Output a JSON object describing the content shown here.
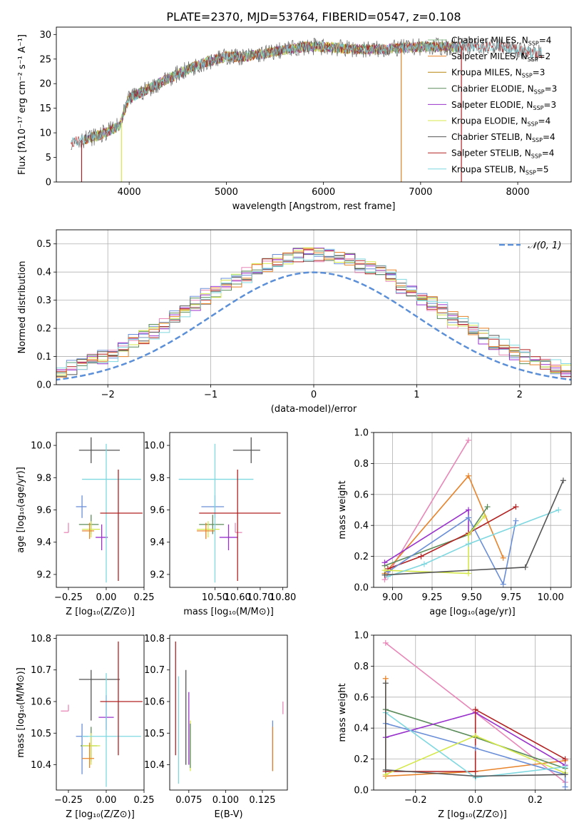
{
  "figure": {
    "suptitle": "PLATE=2370, MJD=53764, FIBERID=0547, z=0.108"
  },
  "colors": {
    "Chabrier MILES": "#8fbc8f",
    "Salpeter MILES": "#e8832a",
    "Kroupa MILES": "#b8860b",
    "Chabrier ELODIE": "#5b8c5a",
    "Salpeter ELODIE": "#9932cc",
    "Kroupa ELODIE": "#d4e84a",
    "Chabrier STELIB": "#555555",
    "Salpeter STELIB": "#b22222",
    "Kroupa STELIB": "#7fd8e0",
    "pink": "#e887b8",
    "blue": "#6a8fd8",
    "dashed_normal": "#5b8fd8",
    "grid": "#b0b0b0"
  },
  "chart_data": [
    {
      "id": "spectrum",
      "type": "line",
      "xlabel": "wavelength [Angstrom, rest frame]",
      "ylabel": "Flux [fλ10⁻¹⁷ erg cm⁻² s⁻¹ A⁻¹]",
      "xlim": [
        3250,
        8550
      ],
      "ylim": [
        0,
        31.5
      ],
      "xticks": [
        4000,
        5000,
        6000,
        7000,
        8000
      ],
      "yticks": [
        0,
        5,
        10,
        15,
        20,
        25,
        30
      ],
      "grid": false,
      "legend_position": "right",
      "legend": [
        {
          "label": "Chabrier MILES, N",
          "sub": "SSP",
          "eq": "=4"
        },
        {
          "label": "Salpeter MILES, N",
          "sub": "SSP",
          "eq": "=2"
        },
        {
          "label": "Kroupa MILES, N",
          "sub": "SSP",
          "eq": "=3"
        },
        {
          "label": "Chabrier ELODIE, N",
          "sub": "SSP",
          "eq": "=3"
        },
        {
          "label": "Salpeter ELODIE, N",
          "sub": "SSP",
          "eq": "=3"
        },
        {
          "label": "Kroupa ELODIE, N",
          "sub": "SSP",
          "eq": "=4"
        },
        {
          "label": "Chabrier STELIB, N",
          "sub": "SSP",
          "eq": "=4"
        },
        {
          "label": "Salpeter STELIB, N",
          "sub": "SSP",
          "eq": "=4"
        },
        {
          "label": "Kroupa STELIB, N",
          "sub": "SSP",
          "eq": "=5"
        }
      ],
      "continuum": {
        "x": [
          3400,
          3700,
          3900,
          4000,
          4200,
          4500,
          4800,
          5000,
          5200,
          5500,
          5800,
          6000,
          6300,
          6600,
          7000,
          7400,
          7800,
          8100,
          8300
        ],
        "y": [
          8,
          9.5,
          11.5,
          17,
          19,
          22,
          24.5,
          25.5,
          25.5,
          26.5,
          27.5,
          27.5,
          27,
          27,
          27.5,
          27.5,
          27.5,
          26.5,
          26
        ]
      },
      "dropouts": [
        {
          "x": 3510,
          "series": "Salpeter STELIB"
        },
        {
          "x": 3920,
          "series": "Kroupa ELODIE"
        },
        {
          "x": 6800,
          "series": "Salpeter MILES"
        },
        {
          "x": 7420,
          "series": "Salpeter STELIB"
        }
      ]
    },
    {
      "id": "residuals",
      "type": "histogram",
      "xlabel": "(data-model)/error",
      "ylabel": "Normed distribution",
      "xlim": [
        -2.5,
        2.5
      ],
      "ylim": [
        0,
        0.55
      ],
      "xticks": [
        -2,
        -1,
        0,
        1,
        2
      ],
      "xticklabels": [
        "−2",
        "−1",
        "0",
        "1",
        "2"
      ],
      "yticks": [
        0,
        0.1,
        0.2,
        0.3,
        0.4,
        0.5
      ],
      "yticklabels": [
        "0.0",
        "0.1",
        "0.2",
        "0.3",
        "0.4",
        "0.5"
      ],
      "grid": true,
      "legend_position": "top-right",
      "legend": "𝒩(0, 1)"
    },
    {
      "id": "age_vs_Z",
      "type": "scatter",
      "xlabel": "Z [log₁₀(Z/Z⊙)]",
      "ylabel": "age  [log₁₀(age/yr)]",
      "xlim": [
        -0.33,
        0.25
      ],
      "ylim": [
        9.12,
        10.08
      ],
      "xticks": [
        -0.25,
        0.0,
        0.25
      ],
      "xticklabels": [
        "−0.25",
        "0.00",
        "0.25"
      ],
      "yticks": [
        9.2,
        9.4,
        9.6,
        9.8,
        10.0
      ],
      "grid": false,
      "points": [
        {
          "color": "pink",
          "x": -0.25,
          "y": 9.46,
          "xerr": [
            0.03,
            0.0
          ],
          "yerr": [
            0.0,
            0.06
          ]
        },
        {
          "color": "blue",
          "x": -0.16,
          "y": 9.62,
          "xerr": [
            0.04,
            0.03
          ],
          "yerr": [
            0.07,
            0.07
          ]
        },
        {
          "color": "Chabrier ELODIE",
          "x": -0.1,
          "y": 9.51,
          "xerr": [
            0.08,
            0.05
          ],
          "yerr": [
            0.06,
            0.06
          ]
        },
        {
          "color": "Kroupa ELODIE",
          "x": -0.1,
          "y": 9.48,
          "xerr": [
            0.06,
            0.06
          ],
          "yerr": [
            0.05,
            0.05
          ]
        },
        {
          "color": "Salpeter MILES",
          "x": -0.11,
          "y": 9.47,
          "xerr": [
            0.05,
            0.03
          ],
          "yerr": [
            0.05,
            0.05
          ]
        },
        {
          "color": "Salpeter ELODIE",
          "x": -0.03,
          "y": 9.43,
          "xerr": [
            0.04,
            0.04
          ],
          "yerr": [
            0.08,
            0.08
          ]
        },
        {
          "color": "Chabrier STELIB",
          "x": -0.1,
          "y": 9.97,
          "xerr": [
            0.08,
            0.19
          ],
          "yerr": [
            0.08,
            0.08
          ]
        },
        {
          "color": "Kroupa STELIB",
          "x": 0.0,
          "y": 9.79,
          "xerr": [
            0.16,
            0.23
          ],
          "yerr": [
            0.64,
            0.22
          ]
        },
        {
          "color": "Salpeter STELIB",
          "x": 0.08,
          "y": 9.58,
          "xerr": [
            0.12,
            0.16
          ],
          "yerr": [
            0.42,
            0.27
          ]
        }
      ]
    },
    {
      "id": "age_vs_mass",
      "type": "scatter",
      "xlabel": "mass [log₁₀(M/M⊙)]",
      "ylabel": "",
      "xlim": [
        10.3,
        10.82
      ],
      "ylim": [
        9.12,
        10.08
      ],
      "xticks": [
        10.5,
        10.6,
        10.7,
        10.8
      ],
      "xticklabels": [
        "10.50",
        "10.60",
        "10.70",
        "10.80"
      ],
      "yticks": [
        9.2,
        9.4,
        9.6,
        9.8,
        10.0
      ],
      "grid": false,
      "points": [
        {
          "color": "blue",
          "x": 10.5,
          "y": 9.62,
          "xerr": [
            0.06,
            0.04
          ],
          "yerr": [
            0.07,
            0.07
          ]
        },
        {
          "color": "Chabrier ELODIE",
          "x": 10.49,
          "y": 9.51,
          "xerr": [
            0.06,
            0.05
          ],
          "yerr": [
            0.06,
            0.06
          ]
        },
        {
          "color": "Kroupa ELODIE",
          "x": 10.47,
          "y": 9.48,
          "xerr": [
            0.05,
            0.05
          ],
          "yerr": [
            0.05,
            0.05
          ]
        },
        {
          "color": "Salpeter MILES",
          "x": 10.46,
          "y": 9.47,
          "xerr": [
            0.04,
            0.04
          ],
          "yerr": [
            0.05,
            0.05
          ]
        },
        {
          "color": "pink",
          "x": 10.59,
          "y": 9.46,
          "xerr": [
            0.0,
            0.03
          ],
          "yerr": [
            0.0,
            0.06
          ]
        },
        {
          "color": "Salpeter ELODIE",
          "x": 10.56,
          "y": 9.43,
          "xerr": [
            0.04,
            0.04
          ],
          "yerr": [
            0.08,
            0.08
          ]
        },
        {
          "color": "Chabrier STELIB",
          "x": 10.66,
          "y": 9.97,
          "xerr": [
            0.08,
            0.04
          ],
          "yerr": [
            0.08,
            0.08
          ]
        },
        {
          "color": "Kroupa STELIB",
          "x": 10.5,
          "y": 9.79,
          "xerr": [
            0.16,
            0.17
          ],
          "yerr": [
            0.64,
            0.22
          ]
        },
        {
          "color": "Salpeter STELIB",
          "x": 10.6,
          "y": 9.58,
          "xerr": [
            0.17,
            0.19
          ],
          "yerr": [
            0.42,
            0.27
          ]
        }
      ]
    },
    {
      "id": "weight_vs_age",
      "type": "line",
      "xlabel": "age  [log₁₀(age/yr)]",
      "ylabel": "mass weight",
      "xlim": [
        8.88,
        10.13
      ],
      "ylim": [
        0,
        1
      ],
      "xticks": [
        9.0,
        9.25,
        9.5,
        9.75,
        10.0
      ],
      "xticklabels": [
        "9.00",
        "9.25",
        "9.50",
        "9.75",
        "10.00"
      ],
      "yticks": [
        0,
        0.2,
        0.4,
        0.6,
        0.8,
        1.0
      ],
      "yticklabels": [
        "0.0",
        "0.2",
        "0.4",
        "0.6",
        "0.8",
        "1.0"
      ],
      "grid": true,
      "series": [
        {
          "color": "pink",
          "x": [
            8.95,
            9.48
          ],
          "y": [
            0.05,
            0.95
          ]
        },
        {
          "color": "Salpeter MILES",
          "x": [
            8.95,
            9.48,
            9.7
          ],
          "y": [
            0.09,
            0.72,
            0.19
          ]
        },
        {
          "color": "Chabrier ELODIE",
          "x": [
            8.95,
            9.48,
            9.6
          ],
          "y": [
            0.14,
            0.34,
            0.52
          ]
        },
        {
          "color": "Salpeter ELODIE",
          "x": [
            8.95,
            9.48,
            9.48
          ],
          "y": [
            0.16,
            0.5,
            0.34
          ]
        },
        {
          "color": "Salpeter STELIB",
          "x": [
            8.97,
            9.18,
            9.48,
            9.78
          ],
          "y": [
            0.12,
            0.2,
            0.35,
            0.52
          ]
        },
        {
          "color": "blue",
          "x": [
            8.97,
            9.48,
            9.7,
            9.78
          ],
          "y": [
            0.1,
            0.45,
            0.02,
            0.43
          ]
        },
        {
          "color": "Kroupa ELODIE",
          "x": [
            8.95,
            9.48,
            9.48,
            9.58
          ],
          "y": [
            0.11,
            0.09,
            0.34,
            0.46
          ]
        },
        {
          "color": "Kroupa STELIB",
          "x": [
            8.97,
            9.2,
            9.48,
            10.05
          ],
          "y": [
            0.07,
            0.15,
            0.28,
            0.5
          ]
        },
        {
          "color": "Chabrier STELIB",
          "x": [
            8.95,
            9.84,
            10.08
          ],
          "y": [
            0.08,
            0.13,
            0.69
          ]
        }
      ]
    },
    {
      "id": "mass_vs_Z",
      "type": "scatter",
      "xlabel": "Z [log₁₀(Z/Z⊙)]",
      "ylabel": "mass [log₁₀(M/M⊙)]",
      "xlim": [
        -0.33,
        0.25
      ],
      "ylim": [
        10.32,
        10.81
      ],
      "xticks": [
        -0.25,
        0.0,
        0.25
      ],
      "xticklabels": [
        "−0.25",
        "0.00",
        "0.25"
      ],
      "yticks": [
        10.4,
        10.5,
        10.6,
        10.7,
        10.8
      ],
      "grid": false,
      "points": [
        {
          "color": "pink",
          "x": -0.25,
          "y": 10.57,
          "xerr": [
            0.05,
            0.0
          ],
          "yerr": [
            0.0,
            0.02
          ]
        },
        {
          "color": "blue",
          "x": -0.16,
          "y": 10.49,
          "xerr": [
            0.04,
            0.04
          ],
          "yerr": [
            0.12,
            0.04
          ]
        },
        {
          "color": "Chabrier ELODIE",
          "x": -0.1,
          "y": 10.46,
          "xerr": [
            0.07,
            0.04
          ],
          "yerr": [
            0.05,
            0.06
          ]
        },
        {
          "color": "Kroupa ELODIE",
          "x": -0.1,
          "y": 10.46,
          "xerr": [
            0.06,
            0.06
          ],
          "yerr": [
            0.06,
            0.04
          ]
        },
        {
          "color": "Salpeter MILES",
          "x": -0.11,
          "y": 10.42,
          "xerr": [
            0.05,
            0.03
          ],
          "yerr": [
            0.03,
            0.05
          ]
        },
        {
          "color": "Salpeter ELODIE",
          "x": 0.0,
          "y": 10.55,
          "xerr": [
            0.05,
            0.05
          ],
          "yerr": [
            0.04,
            0.07
          ]
        },
        {
          "color": "Chabrier STELIB",
          "x": -0.1,
          "y": 10.67,
          "xerr": [
            0.08,
            0.19
          ],
          "yerr": [
            0.13,
            0.03
          ]
        },
        {
          "color": "Kroupa STELIB",
          "x": 0.0,
          "y": 10.49,
          "xerr": [
            0.16,
            0.23
          ],
          "yerr": [
            0.16,
            0.2
          ]
        },
        {
          "color": "Salpeter STELIB",
          "x": 0.08,
          "y": 10.6,
          "xerr": [
            0.12,
            0.16
          ],
          "yerr": [
            0.17,
            0.19
          ]
        }
      ]
    },
    {
      "id": "mass_vs_EBV",
      "type": "scatter",
      "xlabel": "E(B-V)",
      "ylabel": "",
      "xlim": [
        0.062,
        0.142
      ],
      "ylim": [
        10.32,
        10.81
      ],
      "xticks": [
        0.075,
        0.1,
        0.125
      ],
      "xticklabels": [
        "0.075",
        "0.100",
        "0.125"
      ],
      "yticks": [
        10.4,
        10.5,
        10.6,
        10.7,
        10.8
      ],
      "grid": false,
      "points": [
        {
          "color": "Salpeter STELIB",
          "x": 0.066,
          "y": 10.62,
          "yerr": [
            0.19,
            0.17
          ]
        },
        {
          "color": "Kroupa STELIB",
          "x": 0.068,
          "y": 10.5,
          "yerr": [
            0.16,
            0.18
          ]
        },
        {
          "color": "Chabrier STELIB",
          "x": 0.073,
          "y": 10.6,
          "yerr": [
            0.2,
            0.1
          ]
        },
        {
          "color": "Salpeter ELODIE",
          "x": 0.075,
          "y": 10.55,
          "yerr": [
            0.15,
            0.08
          ]
        },
        {
          "color": "Kroupa ELODIE",
          "x": 0.076,
          "y": 10.46,
          "yerr": [
            0.08,
            0.08
          ]
        },
        {
          "color": "Chabrier ELODIE",
          "x": 0.076,
          "y": 10.47,
          "yerr": [
            0.08,
            0.06
          ]
        },
        {
          "color": "blue",
          "x": 0.132,
          "y": 10.46,
          "yerr": [
            0.08,
            0.08
          ]
        },
        {
          "color": "Salpeter MILES",
          "x": 0.132,
          "y": 10.46,
          "yerr": [
            0.08,
            0.06
          ]
        },
        {
          "color": "pink",
          "x": 0.139,
          "y": 10.58,
          "yerr": [
            0.02,
            0.02
          ]
        }
      ]
    },
    {
      "id": "weight_vs_Z",
      "type": "line",
      "xlabel": "Z [log₁₀(Z/Z⊙)]",
      "ylabel": "mass weight",
      "xlim": [
        -0.34,
        0.32
      ],
      "ylim": [
        0,
        1
      ],
      "xticks": [
        -0.2,
        0.0,
        0.2
      ],
      "xticklabels": [
        "−0.2",
        "0.0",
        "0.2"
      ],
      "yticks": [
        0,
        0.2,
        0.4,
        0.6,
        0.8,
        1.0
      ],
      "yticklabels": [
        "0.0",
        "0.2",
        "0.4",
        "0.6",
        "0.8",
        "1.0"
      ],
      "grid": true,
      "series": [
        {
          "color": "pink",
          "x": [
            -0.3,
            0.0,
            0.3
          ],
          "y": [
            0.95,
            0.5,
            0.05
          ]
        },
        {
          "color": "Salpeter MILES",
          "x": [
            -0.3,
            -0.3,
            0.0,
            0.3
          ],
          "y": [
            0.72,
            0.09,
            0.12,
            0.19
          ]
        },
        {
          "color": "Chabrier ELODIE",
          "x": [
            -0.3,
            0.0,
            0.3
          ],
          "y": [
            0.52,
            0.34,
            0.14
          ]
        },
        {
          "color": "Salpeter ELODIE",
          "x": [
            -0.3,
            0.0,
            0.3
          ],
          "y": [
            0.34,
            0.5,
            0.16
          ]
        },
        {
          "color": "Salpeter STELIB",
          "x": [
            -0.3,
            -0.3,
            0.0,
            0.0,
            0.3
          ],
          "y": [
            0.12,
            0.12,
            0.12,
            0.52,
            0.2
          ]
        },
        {
          "color": "blue",
          "x": [
            -0.3,
            0.0,
            0.3,
            0.3
          ],
          "y": [
            0.43,
            0.27,
            0.1,
            0.02
          ]
        },
        {
          "color": "Kroupa ELODIE",
          "x": [
            -0.3,
            0.0,
            0.3
          ],
          "y": [
            0.1,
            0.35,
            0.11
          ]
        },
        {
          "color": "Kroupa STELIB",
          "x": [
            -0.3,
            0.0,
            0.3
          ],
          "y": [
            0.5,
            0.08,
            0.15
          ]
        },
        {
          "color": "Chabrier STELIB",
          "x": [
            -0.3,
            -0.3,
            0.0,
            0.3
          ],
          "y": [
            0.69,
            0.13,
            0.09,
            0.1
          ]
        }
      ]
    }
  ]
}
